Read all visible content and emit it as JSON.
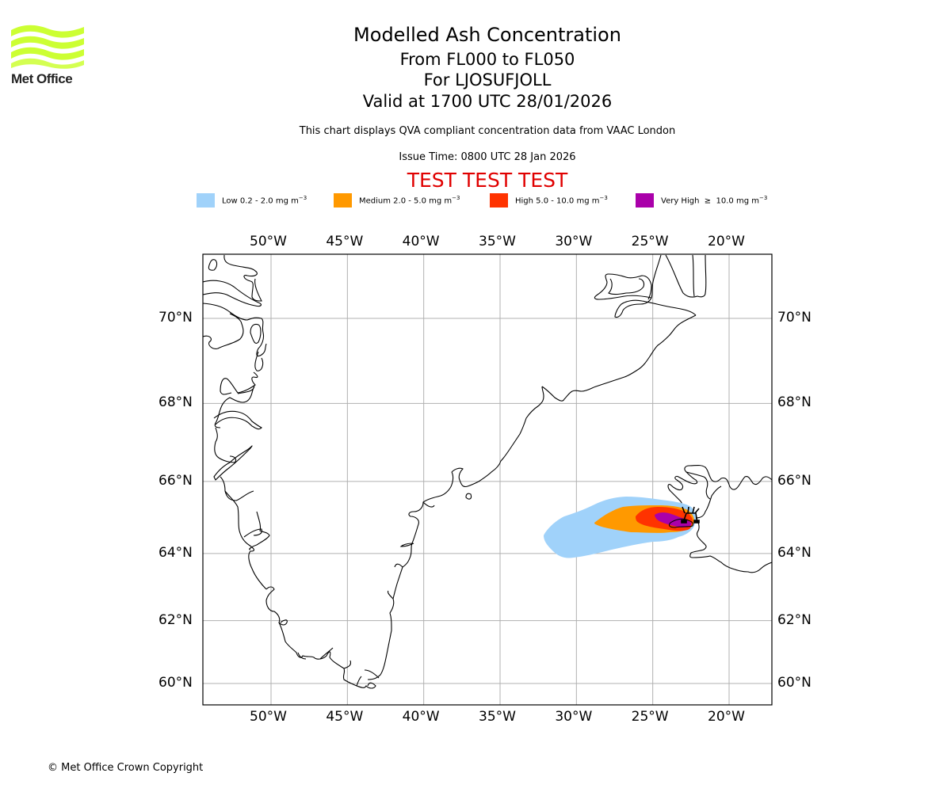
{
  "header": {
    "title": "Modelled Ash Concentration",
    "flight_levels": "From FL000 to FL050",
    "volcano": "For LJOSUFJOLL",
    "valid_time": "Valid at 1700 UTC 28/01/2026",
    "description": "This chart displays QVA compliant concentration data from VAAC London",
    "issue_time": "Issue Time: 0800 UTC 28 Jan 2026",
    "test_banner": "TEST TEST TEST"
  },
  "logo": {
    "name": "Met Office",
    "icon": "met-office-waves-logo",
    "color": "#ccff33"
  },
  "legend": [
    {
      "label": "Low 0.2 - 2.0 mg m",
      "exp": "−3",
      "color": "#a0d2fa"
    },
    {
      "label": "Medium 2.0 - 5.0 mg m",
      "exp": "−3",
      "color": "#ff9900"
    },
    {
      "label": "High 5.0 - 10.0 mg m",
      "exp": "−3",
      "color": "#ff3300"
    },
    {
      "label": "Very High  ≥  10.0 mg m",
      "exp": "−3",
      "color": "#aa00aa"
    }
  ],
  "axes": {
    "lon_labels": [
      "50°W",
      "45°W",
      "40°W",
      "35°W",
      "30°W",
      "25°W",
      "20°W"
    ],
    "lat_labels": [
      "70°N",
      "68°N",
      "66°N",
      "64°N",
      "62°N",
      "60°N"
    ],
    "lon_values": [
      -50,
      -45,
      -40,
      -35,
      -30,
      -25,
      -20
    ],
    "lat_values": [
      70,
      68,
      66,
      64,
      62,
      60
    ]
  },
  "map": {
    "region": "Greenland and Iceland",
    "volcano_marker": "volcano-icon",
    "volcano_location": {
      "lat": 64.8,
      "lon": -22.9
    }
  },
  "footer": {
    "copyright": "© Met Office Crown Copyright"
  }
}
